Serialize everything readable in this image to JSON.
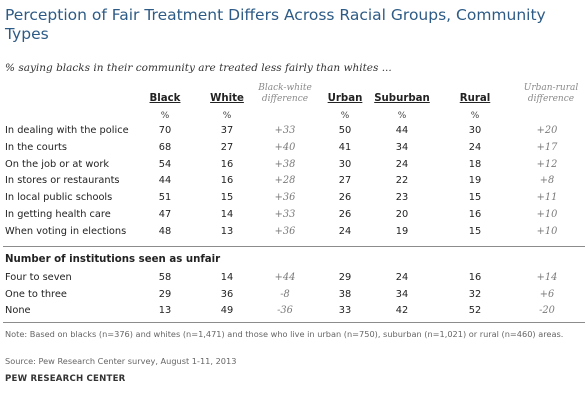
{
  "title": "Perception of Fair Treatment Differs Across Racial Groups, Community Types",
  "subtitle": "% saying blacks in their community are treated less fairly than whites ...",
  "columns": {
    "black": "Black",
    "white": "White",
    "bw_diff": "Black-white difference",
    "urban": "Urban",
    "suburban": "Suburban",
    "rural": "Rural",
    "ur_diff": "Urban-rural difference",
    "pct": "%"
  },
  "section_label": "Number of institutions seen as unfair",
  "note": "Note: Based on blacks (n=376) and whites (n=1,471) and those who live in urban (n=750), suburban (n=1,021) or rural (n=460) areas.",
  "source": "Source: Pew Research Center survey, August 1-11, 2013",
  "brand": "PEW RESEARCH CENTER",
  "chart_data": {
    "type": "table",
    "title": "Perception of Fair Treatment Differs Across Racial Groups, Community Types",
    "columns": [
      "Black",
      "White",
      "Black-white difference",
      "Urban",
      "Suburban",
      "Rural",
      "Urban-rural difference"
    ],
    "rows": [
      {
        "label": "In dealing with the police",
        "values": [
          "70",
          "37",
          "+33",
          "50",
          "44",
          "30",
          "+20"
        ]
      },
      {
        "label": "In the courts",
        "values": [
          "68",
          "27",
          "+40",
          "41",
          "34",
          "24",
          "+17"
        ]
      },
      {
        "label": "On the job or at work",
        "values": [
          "54",
          "16",
          "+38",
          "30",
          "24",
          "18",
          "+12"
        ]
      },
      {
        "label": "In stores or restaurants",
        "values": [
          "44",
          "16",
          "+28",
          "27",
          "22",
          "19",
          "+8"
        ]
      },
      {
        "label": "In local public schools",
        "values": [
          "51",
          "15",
          "+36",
          "26",
          "23",
          "15",
          "+11"
        ]
      },
      {
        "label": "In getting health care",
        "values": [
          "47",
          "14",
          "+33",
          "26",
          "20",
          "16",
          "+10"
        ]
      },
      {
        "label": "When voting in elections",
        "values": [
          "48",
          "13",
          "+36",
          "24",
          "19",
          "15",
          "+10"
        ]
      }
    ],
    "section_rows": [
      {
        "label": "Four to seven",
        "values": [
          "58",
          "14",
          "+44",
          "29",
          "24",
          "16",
          "+14"
        ]
      },
      {
        "label": "One to three",
        "values": [
          "29",
          "36",
          "-8",
          "38",
          "34",
          "32",
          "+6"
        ]
      },
      {
        "label": "None",
        "values": [
          "13",
          "49",
          "-36",
          "33",
          "42",
          "52",
          "-20"
        ]
      }
    ]
  }
}
